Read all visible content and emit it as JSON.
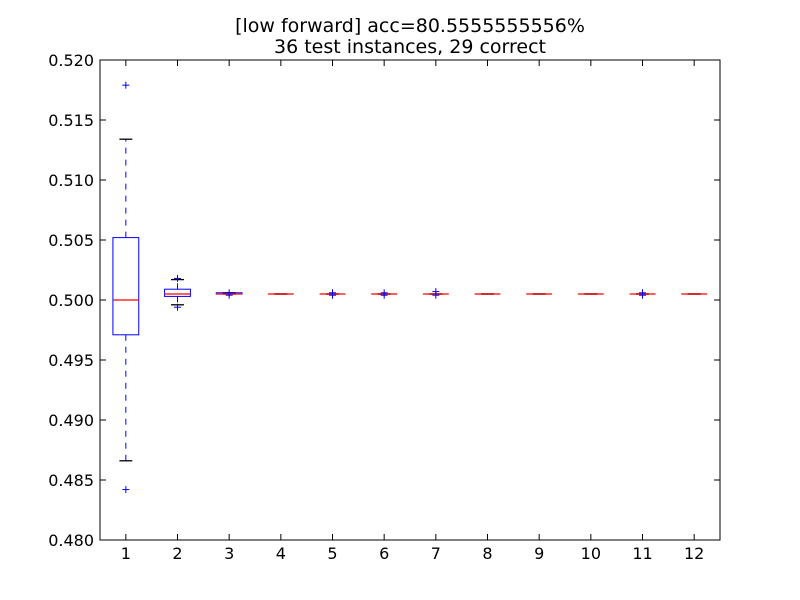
{
  "chart_data": {
    "type": "box",
    "title_lines": [
      "[low forward] acc=80.5555555556%",
      "36 test instances, 29 correct"
    ],
    "xlabel": "",
    "ylabel": "",
    "ylim": [
      0.48,
      0.52
    ],
    "y_ticks": [
      "0.480",
      "0.485",
      "0.490",
      "0.495",
      "0.500",
      "0.505",
      "0.510",
      "0.515",
      "0.520"
    ],
    "categories": [
      "1",
      "2",
      "3",
      "4",
      "5",
      "6",
      "7",
      "8",
      "9",
      "10",
      "11",
      "12"
    ],
    "boxes": [
      {
        "label": "1",
        "whisker_low": 0.4866,
        "q1": 0.4971,
        "median": 0.5,
        "q3": 0.5052,
        "whisker_high": 0.5134,
        "fliers": [
          0.5179,
          0.4842
        ]
      },
      {
        "label": "2",
        "whisker_low": 0.4996,
        "q1": 0.5003,
        "median": 0.5005,
        "q3": 0.5009,
        "whisker_high": 0.5017,
        "fliers": [
          0.5018,
          0.4994
        ]
      },
      {
        "label": "3",
        "whisker_low": 0.5005,
        "q1": 0.5005,
        "median": 0.5005,
        "q3": 0.5006,
        "whisker_high": 0.5006,
        "fliers": [
          0.5006,
          0.5004
        ]
      },
      {
        "label": "4",
        "whisker_low": 0.5005,
        "q1": 0.5005,
        "median": 0.5005,
        "q3": 0.5005,
        "whisker_high": 0.5005,
        "fliers": []
      },
      {
        "label": "5",
        "whisker_low": 0.5005,
        "q1": 0.5005,
        "median": 0.5005,
        "q3": 0.5005,
        "whisker_high": 0.5005,
        "fliers": [
          0.5006,
          0.5004
        ]
      },
      {
        "label": "6",
        "whisker_low": 0.5005,
        "q1": 0.5005,
        "median": 0.5005,
        "q3": 0.5005,
        "whisker_high": 0.5005,
        "fliers": [
          0.5006,
          0.5004
        ]
      },
      {
        "label": "7",
        "whisker_low": 0.5005,
        "q1": 0.5005,
        "median": 0.5005,
        "q3": 0.5005,
        "whisker_high": 0.5005,
        "fliers": [
          0.5007,
          0.5004
        ]
      },
      {
        "label": "8",
        "whisker_low": 0.5005,
        "q1": 0.5005,
        "median": 0.5005,
        "q3": 0.5005,
        "whisker_high": 0.5005,
        "fliers": []
      },
      {
        "label": "9",
        "whisker_low": 0.5005,
        "q1": 0.5005,
        "median": 0.5005,
        "q3": 0.5005,
        "whisker_high": 0.5005,
        "fliers": []
      },
      {
        "label": "10",
        "whisker_low": 0.5005,
        "q1": 0.5005,
        "median": 0.5005,
        "q3": 0.5005,
        "whisker_high": 0.5005,
        "fliers": []
      },
      {
        "label": "11",
        "whisker_low": 0.5005,
        "q1": 0.5005,
        "median": 0.5005,
        "q3": 0.5005,
        "whisker_high": 0.5005,
        "fliers": [
          0.5006,
          0.5004
        ]
      },
      {
        "label": "12",
        "whisker_low": 0.5005,
        "q1": 0.5005,
        "median": 0.5005,
        "q3": 0.5005,
        "whisker_high": 0.5005,
        "fliers": []
      }
    ],
    "grid": false,
    "colors": {
      "box": "#0000ff",
      "median": "#ff0000",
      "whisker": "#0000ff",
      "cap": "#000000",
      "flier": "#0000ff",
      "axes": "#000000"
    }
  }
}
